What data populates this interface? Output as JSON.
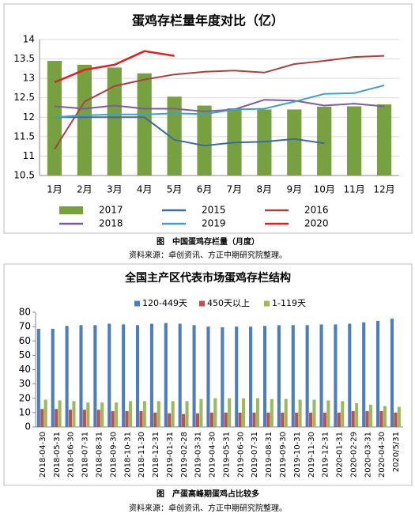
{
  "chart_data": [
    {
      "type": "combo",
      "title": "蛋鸡存栏量年度对比（亿）",
      "caption": "图　中国蛋鸡存栏量（月度）",
      "source": "资料来源：卓创资讯、方正中期研究院整理。",
      "categories": [
        "1月",
        "2月",
        "3月",
        "4月",
        "5月",
        "6月",
        "7月",
        "8月",
        "9月",
        "10月",
        "11月",
        "12月"
      ],
      "ylim": [
        10.5,
        14
      ],
      "yticks": [
        10.5,
        11,
        11.5,
        12,
        12.5,
        13,
        13.5,
        14
      ],
      "grid": true,
      "series": [
        {
          "name": "2017",
          "kind": "bar",
          "color": "#77a040",
          "values": [
            13.45,
            13.35,
            13.28,
            13.13,
            12.53,
            12.3,
            12.23,
            12.2,
            12.2,
            12.27,
            12.28,
            12.33
          ]
        },
        {
          "name": "2015",
          "kind": "line",
          "color": "#3b6aa0",
          "values": [
            12.0,
            12.0,
            12.0,
            12.0,
            11.42,
            11.27,
            11.35,
            11.37,
            11.44,
            11.33,
            null,
            null
          ]
        },
        {
          "name": "2016",
          "kind": "line",
          "color": "#a8423e",
          "values": [
            11.18,
            12.4,
            12.8,
            12.97,
            13.1,
            13.17,
            13.2,
            13.15,
            13.37,
            13.45,
            13.55,
            13.58
          ]
        },
        {
          "name": "2018",
          "kind": "line",
          "color": "#7d5c9c",
          "values": [
            12.28,
            12.22,
            12.3,
            12.22,
            12.22,
            12.15,
            12.2,
            12.45,
            12.43,
            12.3,
            12.35,
            12.28
          ]
        },
        {
          "name": "2019",
          "kind": "line",
          "color": "#44a0c0",
          "values": [
            12.0,
            12.05,
            12.07,
            12.07,
            12.1,
            12.08,
            12.2,
            12.22,
            12.4,
            12.6,
            12.62,
            12.82
          ]
        },
        {
          "name": "2020",
          "kind": "line",
          "color": "#e02020",
          "values": [
            12.9,
            13.22,
            13.35,
            13.7,
            13.58,
            null,
            null,
            null,
            null,
            null,
            null,
            null
          ]
        }
      ]
    },
    {
      "type": "bar",
      "title": "全国主产区代表市场蛋鸡存栏结构",
      "caption": "图　产蛋高峰期蛋鸡占比较多",
      "source": "资料来源：卓创资讯、方正中期研究院整理。",
      "categories": [
        "2018-04-30",
        "2018-05-31",
        "2018-06-30",
        "2018-07-31",
        "2018-08-31",
        "2018-09-30",
        "2018-10-31",
        "2018-11-30",
        "2018-12-31",
        "2019-01-31",
        "2019-02-28",
        "2019-03-31",
        "2019-04-30",
        "2019-05-31",
        "2019-06-30",
        "2019-07-31",
        "2019-08-31",
        "2019-09-30",
        "2019-10-31",
        "2019-11-30",
        "2019-12-31",
        "2020-01-31",
        "2020-02-29",
        "2020-03-31",
        "2020-04-30",
        "2020/5/31"
      ],
      "ylim": [
        0,
        80
      ],
      "yticks": [
        0,
        10,
        20,
        30,
        40,
        50,
        60,
        70,
        80
      ],
      "grid": false,
      "series": [
        {
          "name": "120-449天",
          "color": "#4a7ec0",
          "values": [
            68.5,
            68.5,
            70.5,
            71,
            71,
            72,
            71.5,
            71,
            72,
            72.5,
            72,
            71,
            70,
            69.5,
            70,
            70,
            70.5,
            71,
            71,
            71,
            71.5,
            71.5,
            72,
            73,
            74,
            75.5
          ]
        },
        {
          "name": "450天以上",
          "color": "#c0504d",
          "values": [
            12.5,
            12.5,
            12,
            12,
            12,
            11,
            11,
            11,
            10,
            9.5,
            9,
            9.5,
            10,
            10,
            10,
            10,
            10,
            10,
            10,
            10,
            10,
            10,
            11,
            11,
            11,
            10
          ]
        },
        {
          "name": "1-119天",
          "color": "#9bbb59",
          "values": [
            19,
            18.5,
            18,
            17,
            17,
            17,
            18,
            18,
            18,
            18,
            18,
            19.5,
            20,
            20,
            20,
            20,
            19.5,
            19.5,
            19,
            19,
            18.5,
            18,
            16.5,
            15.5,
            14.5,
            14
          ]
        }
      ]
    }
  ]
}
